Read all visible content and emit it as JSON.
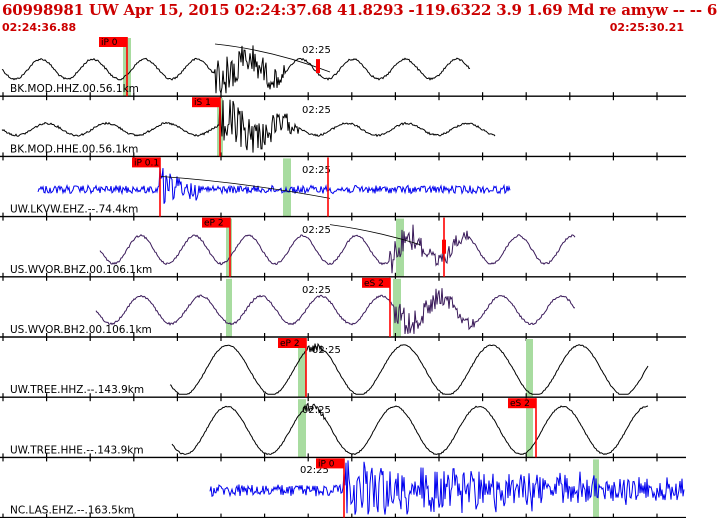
{
  "header": {
    "title": "60998981 UW Apr 15, 2015 02:24:37.68   41.8293 -119.6322  3.9 1.69 Md re amyw -- --   6",
    "time_start": "02:24:36.88",
    "time_end": "02:25:30.21"
  },
  "time_tick_label": "02:25",
  "colors": {
    "header_text": "#cc0000",
    "pick": "#ff0000",
    "band": "#a8dca0",
    "black_trace": "#000000",
    "blue_trace": "#0000ee",
    "purple_trace": "#3a1a5a"
  },
  "traces": [
    {
      "label": "BK.MOD.HHZ.00.56.1km",
      "color": "black",
      "pick": "iP 0",
      "extra_picks": []
    },
    {
      "label": "BK.MOD.HHE.00.56.1km",
      "color": "black",
      "pick": "iS 1",
      "extra_picks": []
    },
    {
      "label": "UW.LKVW.EHZ.--.74.4km",
      "color": "blue",
      "pick": "iP 0.1",
      "extra_picks": []
    },
    {
      "label": "US.WVOR.BHZ.00.106.1km",
      "color": "purple",
      "pick": "eP 2",
      "extra_picks": []
    },
    {
      "label": "US.WVOR.BH2.00.106.1km",
      "color": "purple",
      "pick": "eS 2",
      "extra_picks": []
    },
    {
      "label": "UW.TREE.HHZ.--.143.9km",
      "color": "black",
      "pick": "eP 2",
      "extra_picks": []
    },
    {
      "label": "UW.TREE.HHE.--.143.9km",
      "color": "black",
      "pick": "eS 2",
      "extra_picks": []
    },
    {
      "label": "NC.LAS.EHZ.--.163.5km",
      "color": "blue",
      "pick": "iP 0",
      "extra_picks": []
    }
  ]
}
